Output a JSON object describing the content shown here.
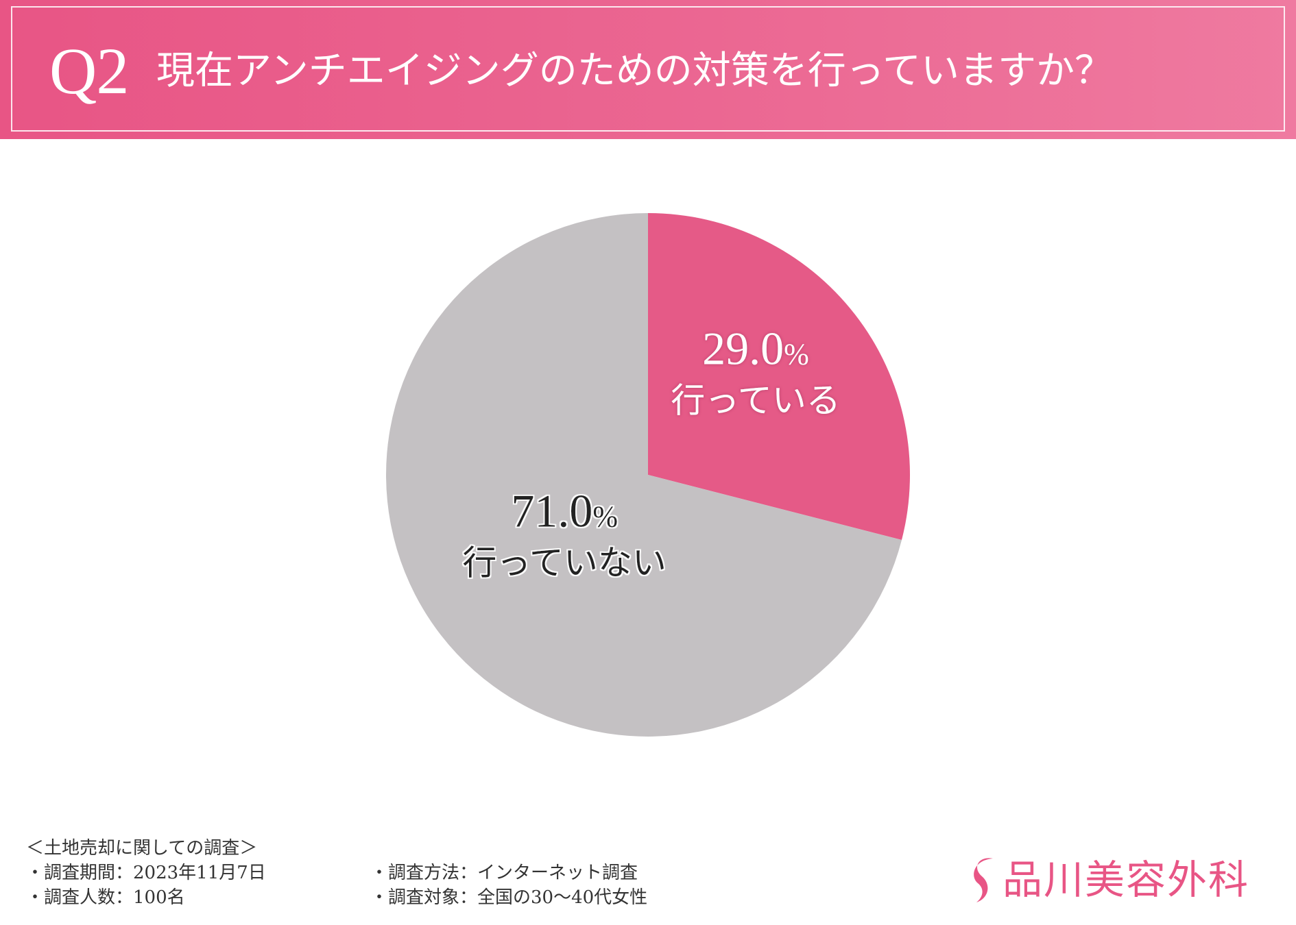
{
  "header": {
    "q_number": "Q2",
    "question": "現在アンチエイジングのための対策を行っていますか？"
  },
  "colors": {
    "header_pink": "#e85585",
    "slice_yes": "#e55a87",
    "slice_no": "#c4c1c3",
    "logo_pink": "#e85585"
  },
  "chart_data": {
    "type": "pie",
    "start": "12 o'clock, clockwise",
    "slices": [
      {
        "label": "行っている",
        "value": 29.0,
        "value_label": "29.0%",
        "color": "#e55a87",
        "text_color": "#ffffff"
      },
      {
        "label": "行っていない",
        "value": 71.0,
        "value_label": "71.0%",
        "color": "#c4c1c3",
        "text_color": "#222222"
      }
    ],
    "legend": "none (labels inside slices)"
  },
  "footer": {
    "survey_title": "＜土地売却に関しての調査＞",
    "period": "・調査期間：2023年11月7日",
    "count": "・調査人数：100名",
    "method": "・調査方法：インターネット調査",
    "target": "・調査対象：全国の30〜40代女性"
  },
  "logo": {
    "text": "品川美容外科",
    "icon": "s-curve-logo-icon"
  }
}
